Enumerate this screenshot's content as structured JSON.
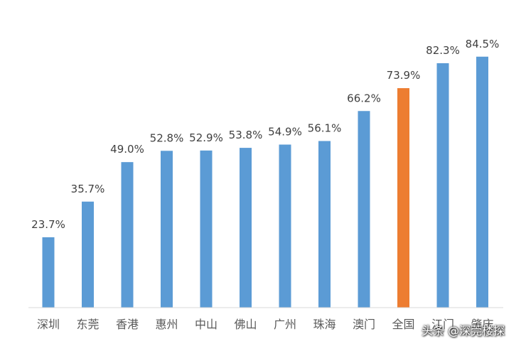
{
  "chart_data": {
    "type": "bar",
    "categories": [
      "深圳",
      "东莞",
      "香港",
      "惠州",
      "中山",
      "佛山",
      "广州",
      "珠海",
      "澳门",
      "全国",
      "江门",
      "肇庆"
    ],
    "values": [
      23.7,
      35.7,
      49.0,
      52.8,
      52.9,
      53.8,
      54.9,
      56.1,
      66.2,
      73.9,
      82.3,
      84.5
    ],
    "data_labels": [
      "23.7%",
      "35.7%",
      "49.0%",
      "52.8%",
      "52.9%",
      "53.8%",
      "54.9%",
      "56.1%",
      "66.2%",
      "73.9%",
      "82.3%",
      "84.5%"
    ],
    "ylim": [
      0,
      85.4
    ],
    "grid": false,
    "colors": {
      "default": "#5b9bd5",
      "highlight": "#ed7d31",
      "axis": "#d9d9d9"
    },
    "highlight_category": "全国"
  },
  "watermark": "头条 @深莞楼探"
}
